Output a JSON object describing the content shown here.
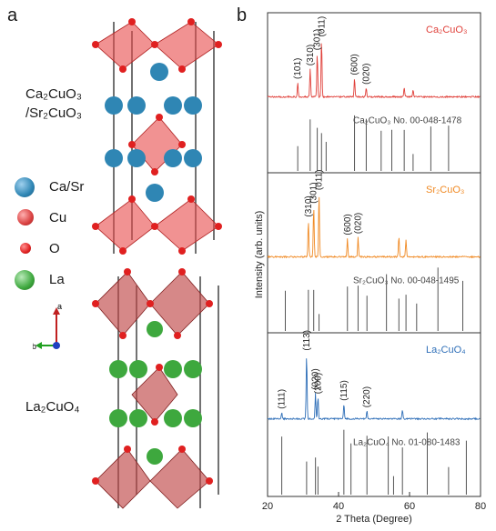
{
  "panel_a": {
    "letter": "a",
    "label_top_line1": "Ca₂CuO₃",
    "label_top_line2": "/Sr₂CuO₃",
    "label_bottom": "La₂CuO₄",
    "legend": [
      {
        "label": "Ca/Sr",
        "color": "#2f86b4"
      },
      {
        "label": "Cu",
        "color": "#d94040"
      },
      {
        "label": "O",
        "color": "#e02020"
      },
      {
        "label": "La",
        "color": "#3ea83e"
      }
    ],
    "axes": {
      "a": "a",
      "b": "b"
    }
  },
  "panel_b": {
    "letter": "b",
    "ylabel": "Intensity (arb. units)",
    "xlabel": "2 Theta (Degree)",
    "x_ticks": [
      "20",
      "40",
      "60",
      "80"
    ],
    "xlim": [
      20,
      80
    ],
    "series": [
      {
        "name": "Ca₂CuO₃",
        "color": "#e0403a",
        "peaks": [
          {
            "x": 28.5,
            "h": 0.22,
            "label": "(101)"
          },
          {
            "x": 32.0,
            "h": 0.42,
            "label": "(310)"
          },
          {
            "x": 34.0,
            "h": 0.65,
            "label": "(301)"
          },
          {
            "x": 35.2,
            "h": 0.85,
            "label": "(011)"
          },
          {
            "x": 44.5,
            "h": 0.28,
            "label": "(600)"
          },
          {
            "x": 47.8,
            "h": 0.14,
            "label": "(020)"
          },
          {
            "x": 58.5,
            "h": 0.15,
            "label": ""
          },
          {
            "x": 61.0,
            "h": 0.1,
            "label": ""
          }
        ]
      },
      {
        "name": "Sr₂CuO₃",
        "color": "#f08a24",
        "peaks": [
          {
            "x": 31.5,
            "h": 0.55,
            "label": "(310)"
          },
          {
            "x": 33.0,
            "h": 0.75,
            "label": "(301)"
          },
          {
            "x": 34.5,
            "h": 0.95,
            "label": "(011)"
          },
          {
            "x": 42.5,
            "h": 0.28,
            "label": "(600)"
          },
          {
            "x": 45.5,
            "h": 0.3,
            "label": "(020)"
          },
          {
            "x": 57.0,
            "h": 0.3,
            "label": ""
          },
          {
            "x": 59.0,
            "h": 0.26,
            "label": ""
          }
        ]
      },
      {
        "name": "La₂CuO₄",
        "color": "#2f6fb8",
        "peaks": [
          {
            "x": 24.0,
            "h": 0.1,
            "label": "(111)"
          },
          {
            "x": 31.0,
            "h": 0.95,
            "label": "(113)"
          },
          {
            "x": 33.5,
            "h": 0.38,
            "label": "(020)"
          },
          {
            "x": 34.2,
            "h": 0.32,
            "label": "(200)"
          },
          {
            "x": 41.5,
            "h": 0.22,
            "label": "(115)"
          },
          {
            "x": 48.0,
            "h": 0.12,
            "label": "(220)"
          },
          {
            "x": 58.0,
            "h": 0.12,
            "label": ""
          }
        ]
      }
    ],
    "references": [
      {
        "text": "Ca₂CuO₃ No. 00-048-1478",
        "sticks": [
          28.5,
          32.0,
          34.0,
          35.2,
          36.5,
          44.5,
          47.8,
          52.0,
          55.0,
          58.5,
          61.0,
          66.0,
          71.0
        ]
      },
      {
        "text": "Sr₂CuO₃ No. 00-048-1495",
        "sticks": [
          25.0,
          31.5,
          33.0,
          34.5,
          42.5,
          45.5,
          48.0,
          53.5,
          57.0,
          59.0,
          62.0,
          68.0,
          75.0
        ]
      },
      {
        "text": "La₂CuO₄ No. 01-080-1483",
        "sticks": [
          24.0,
          31.0,
          33.5,
          34.2,
          41.5,
          43.5,
          48.0,
          54.0,
          55.5,
          58.0,
          65.0,
          71.0,
          76.0
        ]
      }
    ]
  }
}
